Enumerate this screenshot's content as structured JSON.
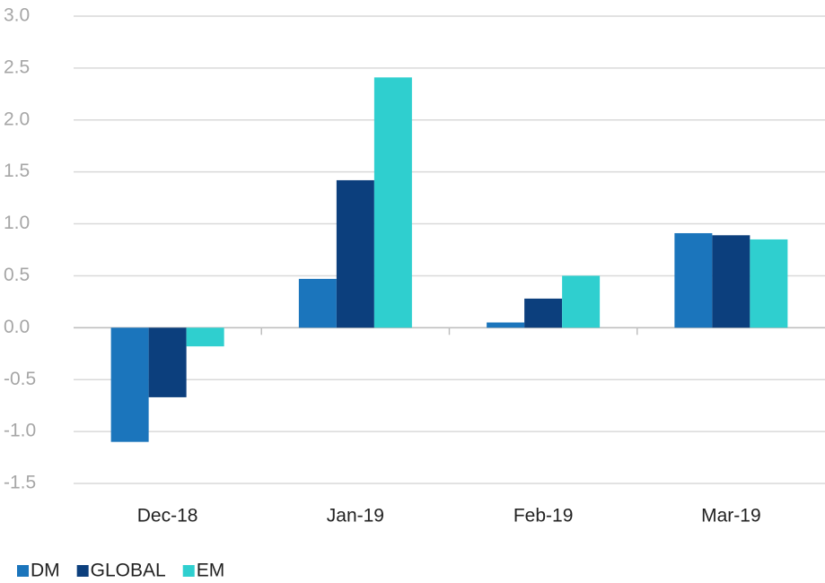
{
  "chart_data": {
    "type": "bar",
    "categories": [
      "Dec-18",
      "Jan-19",
      "Feb-19",
      "Mar-19"
    ],
    "series": [
      {
        "name": "DM",
        "color": "#1b75bc",
        "values": [
          -1.1,
          0.47,
          0.05,
          0.91
        ]
      },
      {
        "name": "GLOBAL",
        "color": "#0c3f7d",
        "values": [
          -0.67,
          1.42,
          0.28,
          0.89
        ]
      },
      {
        "name": "EM",
        "color": "#2fcfcf",
        "values": [
          -0.18,
          2.41,
          0.5,
          0.85
        ]
      }
    ],
    "ylim": [
      -1.5,
      3.0
    ],
    "yticks": [
      -1.5,
      {
        "value": -1,
        "label": "-1.0"
      },
      -0.5,
      {
        "value": 0,
        "label": "0.0"
      },
      0.5,
      {
        "value": 1,
        "label": "1.0"
      },
      1.5,
      {
        "value": 2,
        "label": "2.0"
      },
      2.5,
      {
        "value": 3,
        "label": "3.0"
      }
    ],
    "grid": true,
    "legend": "bottom-left"
  }
}
